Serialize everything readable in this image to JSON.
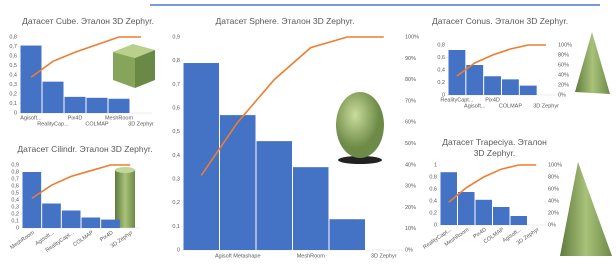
{
  "chart_data": [
    {
      "type": "bar",
      "title": "Датасет Cube. Эталон 3D Zephyr.",
      "categories": [
        "Agisoft...",
        "RealityCap...",
        "Pix4D",
        "COLMAP",
        "MeshRoom",
        "3D Zephyr"
      ],
      "series": [
        {
          "color": "#4472c4",
          "values": [
            0.71,
            0.33,
            0.17,
            0.16,
            0.15,
            0
          ]
        },
        {
          "color": "#ed7d31",
          "axis": "y2",
          "values": [
            47,
            68,
            80,
            90,
            100,
            100
          ]
        }
      ],
      "ylim": [
        0,
        0.8
      ],
      "yticks": [
        0,
        {
          "value": 0.1,
          "label": "0,1"
        },
        {
          "value": 0.2,
          "label": "0,2"
        },
        {
          "value": 0.3,
          "label": "0,3"
        },
        {
          "value": 0.4,
          "label": "0,4"
        },
        {
          "value": 0.5,
          "label": "0,5"
        },
        {
          "value": 0.6,
          "label": "0,6"
        },
        {
          "value": 0.7,
          "label": "0,7"
        },
        {
          "value": 0.8,
          "label": "0,8"
        }
      ],
      "y2lim": [
        0,
        100
      ],
      "y2ticks": []
    },
    {
      "type": "bar",
      "title": "Датасет Sphere. Эталон 3D Zephyr.",
      "categories": [
        null,
        "Agisoft Metashape",
        null,
        "MeshRoom",
        null,
        "3D Zephyr"
      ],
      "series": [
        {
          "color": "#4472c4",
          "values": [
            0.79,
            0.57,
            0.46,
            0.35,
            0.13,
            0
          ]
        },
        {
          "color": "#ed7d31",
          "axis": "y2",
          "values": [
            35,
            60,
            80,
            95,
            100,
            100
          ]
        }
      ],
      "ylim": [
        0,
        0.9
      ],
      "yticks": [
        0,
        {
          "value": 0.1,
          "label": "0,1"
        },
        {
          "value": 0.2,
          "label": "0,2"
        },
        {
          "value": 0.3,
          "label": "0,3"
        },
        {
          "value": 0.4,
          "label": "0,4"
        },
        {
          "value": 0.5,
          "label": "0,5"
        },
        {
          "value": 0.6,
          "label": "0,6"
        },
        {
          "value": 0.7,
          "label": "0,7"
        },
        {
          "value": 0.8,
          "label": "0,8"
        },
        {
          "value": 0.9,
          "label": "0,9"
        }
      ],
      "y2lim": [
        0,
        100
      ],
      "y2ticks": [
        {
          "value": 0,
          "label": "0%"
        },
        {
          "value": 10,
          "label": "10%"
        },
        {
          "value": 20,
          "label": "20%"
        },
        {
          "value": 30,
          "label": "30%"
        },
        {
          "value": 40,
          "label": "40%"
        },
        {
          "value": 50,
          "label": "50%"
        },
        {
          "value": 60,
          "label": "60%"
        },
        {
          "value": 70,
          "label": "70%"
        },
        {
          "value": 80,
          "label": "80%"
        },
        {
          "value": 90,
          "label": "90%"
        },
        {
          "value": 100,
          "label": "100%"
        }
      ]
    },
    {
      "type": "bar",
      "title": "Датасет Conus. Эталон 3D Zephyr.",
      "categories": [
        "RealityCapt...",
        "Agisoft...",
        "Pix4D",
        "COLMAP",
        null,
        "3D Zephyr"
      ],
      "series": [
        {
          "color": "#4472c4",
          "values": [
            0.72,
            0.48,
            0.3,
            0.25,
            0.15,
            0
          ]
        },
        {
          "color": "#ed7d31",
          "axis": "y2",
          "values": [
            38,
            64,
            80,
            92,
            100,
            100
          ]
        }
      ],
      "ylim": [
        0,
        0.8
      ],
      "yticks": [
        0,
        {
          "value": 0.2,
          "label": "0,2"
        },
        {
          "value": 0.4,
          "label": "0,4"
        },
        {
          "value": 0.6,
          "label": "0,6"
        },
        {
          "value": 0.8,
          "label": "0,8"
        }
      ],
      "y2lim": [
        0,
        100
      ],
      "y2ticks": [
        {
          "value": 0,
          "label": "0%"
        },
        {
          "value": 20,
          "label": "20%"
        },
        {
          "value": 40,
          "label": "40%"
        },
        {
          "value": 60,
          "label": "60%"
        },
        {
          "value": 80,
          "label": "80%"
        },
        {
          "value": 100,
          "label": "100%"
        }
      ]
    },
    {
      "type": "bar",
      "title": "Датасет Cilindr. Эталон 3D Zephyr.",
      "categories": [
        "MeshRoom",
        "Agisoft...",
        "RealityCapt...",
        "COLMAP",
        "Pix4D",
        "3D Zephyr"
      ],
      "series": [
        {
          "color": "#4472c4",
          "values": [
            0.8,
            0.35,
            0.25,
            0.15,
            0.12,
            0
          ]
        },
        {
          "color": "#ed7d31",
          "axis": "y2",
          "values": [
            47,
            68,
            82,
            91,
            100,
            100
          ]
        }
      ],
      "ylim": [
        0,
        0.9
      ],
      "yticks": [
        0,
        {
          "value": 0.1,
          "label": "0,1"
        },
        {
          "value": 0.2,
          "label": "0,2"
        },
        {
          "value": 0.3,
          "label": "0,3"
        },
        {
          "value": 0.4,
          "label": "0,4"
        },
        {
          "value": 0.5,
          "label": "0,5"
        },
        {
          "value": 0.6,
          "label": "0,6"
        },
        {
          "value": 0.7,
          "label": "0,7"
        },
        {
          "value": 0.8,
          "label": "0,8"
        },
        {
          "value": 0.9,
          "label": "0,9"
        }
      ],
      "y2lim": [
        0,
        100
      ],
      "y2ticks": []
    },
    {
      "type": "bar",
      "title": "Датасет Trapeciya. Эталон 3D Zephyr.",
      "categories": [
        "RealityCapt...",
        "MeshRoom",
        "Pix4D",
        "COLMAP",
        "Agisoft...",
        "3D Zephyr"
      ],
      "series": [
        {
          "color": "#4472c4",
          "values": [
            0.88,
            0.55,
            0.42,
            0.3,
            0.15,
            0
          ]
        },
        {
          "color": "#ed7d31",
          "axis": "y2",
          "values": [
            38,
            62,
            80,
            93,
            100,
            100
          ]
        }
      ],
      "ylim": [
        0,
        1
      ],
      "yticks": [
        0,
        {
          "value": 0.2,
          "label": "0,2"
        },
        {
          "value": 0.4,
          "label": "0,4"
        },
        {
          "value": 0.6,
          "label": "0,6"
        },
        {
          "value": 0.8,
          "label": "0,8"
        },
        1
      ],
      "y2lim": [
        0,
        100
      ],
      "y2ticks": [
        {
          "value": 0,
          "label": "0%"
        },
        {
          "value": 20,
          "label": "20%"
        },
        {
          "value": 40,
          "label": "40%"
        },
        {
          "value": 60,
          "label": "60%"
        },
        {
          "value": 80,
          "label": "80%"
        },
        {
          "value": 100,
          "label": "100%"
        }
      ]
    }
  ]
}
